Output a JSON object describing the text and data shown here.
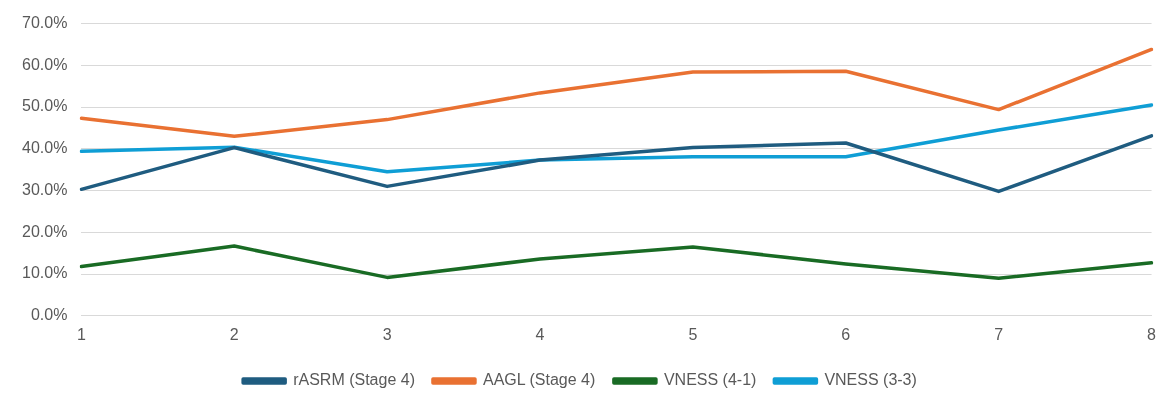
{
  "chart_data": {
    "type": "line",
    "categories": [
      "1",
      "2",
      "3",
      "4",
      "5",
      "6",
      "7",
      "8"
    ],
    "series": [
      {
        "name": "rASRM (Stage 4)",
        "color": "#1f5c80",
        "values": [
          30.3,
          40.3,
          31.0,
          37.3,
          40.3,
          41.4,
          29.8,
          43.1
        ]
      },
      {
        "name": "AAGL (Stage 4)",
        "color": "#e97132",
        "values": [
          47.3,
          43.0,
          47.0,
          53.4,
          58.4,
          58.6,
          49.4,
          63.8
        ]
      },
      {
        "name": "VNESS (4-1)",
        "color": "#196b24",
        "values": [
          11.8,
          16.7,
          9.2,
          13.6,
          16.5,
          12.4,
          9.0,
          12.7
        ]
      },
      {
        "name": "VNESS (3-3)",
        "color": "#0f9ed5",
        "values": [
          39.4,
          40.4,
          34.5,
          37.3,
          38.1,
          38.1,
          44.5,
          50.5
        ]
      }
    ],
    "ylim": [
      0,
      70
    ],
    "yticks": [
      {
        "value": 0,
        "label": "0.0%"
      },
      {
        "value": 10,
        "label": "10.0%"
      },
      {
        "value": 20,
        "label": "20.0%"
      },
      {
        "value": 30,
        "label": "30.0%"
      },
      {
        "value": 40,
        "label": "40.0%"
      },
      {
        "value": 50,
        "label": "50.0%"
      },
      {
        "value": 60,
        "label": "60.0%"
      },
      {
        "value": 70,
        "label": "70.0%"
      }
    ],
    "grid": "y",
    "legend": "bottom",
    "marker": "none",
    "line_style": "solid"
  }
}
